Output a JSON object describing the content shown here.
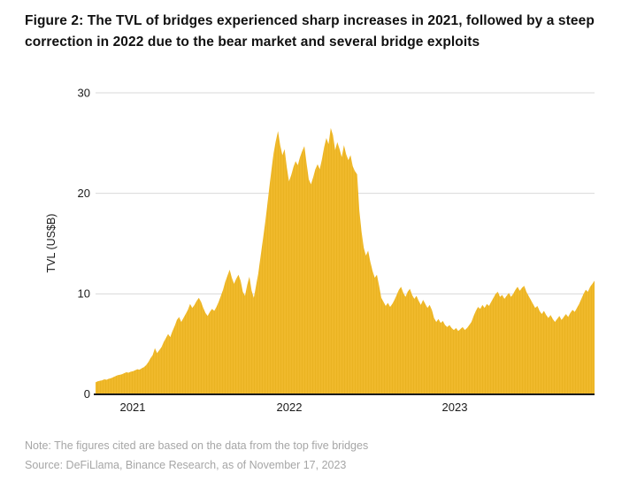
{
  "figure": {
    "title_line1": "Figure 2: The TVL of bridges experienced sharp increases in 2021, followed by a steep",
    "title_line2": "correction in 2022 due to the bear market and several bridge exploits",
    "note": "Note: The figures cited are based on the data from the top five bridges",
    "source": "Source: DeFiLlama, Binance Research, as of November 17, 2023"
  },
  "chart_data": {
    "type": "area",
    "title": "The TVL of bridges",
    "ylabel": "TVL (US$B)",
    "xlabel": "",
    "ylim": [
      0,
      30
    ],
    "y_ticks": [
      0,
      10,
      20,
      30
    ],
    "x_tick_labels": [
      "2021",
      "2022",
      "2023"
    ],
    "x_range": [
      "Oct 2020",
      "Nov 17, 2023"
    ],
    "grid": "horizontal",
    "legend": "none",
    "colors": {
      "area": "#F0B92B",
      "area_stripe": "#E2AB17",
      "grid": "#d9d9d9",
      "axis": "#1a1a1a",
      "tick_text": "#1a1a1a",
      "footnote_text": "#a6a6a6"
    },
    "series": [
      {
        "name": "Bridge TVL (US$B)",
        "interval": "approx. 5-day samples, Oct 2020 to Nov 17 2023",
        "values": [
          1.2,
          1.3,
          1.35,
          1.4,
          1.5,
          1.45,
          1.55,
          1.6,
          1.7,
          1.8,
          1.9,
          1.95,
          2.0,
          2.1,
          2.2,
          2.15,
          2.25,
          2.3,
          2.4,
          2.5,
          2.45,
          2.6,
          2.7,
          2.9,
          3.2,
          3.6,
          3.9,
          4.6,
          4.1,
          4.4,
          4.7,
          5.2,
          5.6,
          6.0,
          5.7,
          6.3,
          6.8,
          7.4,
          7.7,
          7.2,
          7.6,
          8.0,
          8.4,
          9.0,
          8.6,
          8.9,
          9.3,
          9.6,
          9.2,
          8.6,
          8.1,
          7.8,
          8.2,
          8.5,
          8.3,
          8.7,
          9.2,
          9.8,
          10.4,
          11.2,
          11.8,
          12.4,
          11.6,
          11.0,
          11.5,
          11.9,
          11.3,
          10.2,
          9.8,
          10.9,
          11.7,
          10.3,
          9.6,
          10.8,
          12.0,
          13.6,
          15.2,
          16.8,
          18.6,
          20.5,
          22.3,
          24.0,
          25.2,
          26.2,
          24.8,
          23.8,
          24.4,
          22.6,
          21.2,
          21.8,
          22.6,
          23.2,
          22.8,
          23.6,
          24.2,
          24.7,
          23.0,
          21.4,
          20.9,
          21.6,
          22.4,
          22.9,
          22.4,
          23.4,
          24.6,
          25.5,
          24.9,
          26.5,
          25.8,
          24.3,
          25.1,
          24.4,
          23.6,
          24.8,
          23.9,
          23.3,
          23.8,
          22.7,
          22.2,
          21.9,
          18.3,
          16.2,
          14.6,
          13.8,
          14.3,
          13.2,
          12.3,
          11.6,
          11.9,
          10.8,
          9.6,
          9.2,
          8.8,
          9.1,
          8.7,
          9.0,
          9.4,
          9.9,
          10.4,
          10.7,
          10.1,
          9.7,
          10.2,
          10.5,
          9.9,
          9.5,
          9.8,
          9.3,
          8.9,
          9.4,
          9.0,
          8.6,
          8.9,
          8.4,
          7.6,
          7.2,
          7.5,
          7.1,
          7.3,
          6.9,
          6.7,
          6.9,
          6.6,
          6.4,
          6.6,
          6.3,
          6.5,
          6.7,
          6.4,
          6.6,
          6.9,
          7.2,
          7.8,
          8.3,
          8.7,
          8.5,
          8.9,
          8.6,
          9.0,
          8.8,
          9.2,
          9.6,
          10.0,
          10.2,
          9.7,
          9.9,
          9.5,
          9.8,
          10.1,
          9.7,
          10.0,
          10.4,
          10.7,
          10.3,
          10.6,
          10.8,
          10.2,
          9.8,
          9.4,
          9.0,
          8.6,
          8.8,
          8.3,
          8.0,
          8.3,
          7.9,
          7.6,
          7.9,
          7.5,
          7.2,
          7.5,
          7.8,
          7.4,
          7.7,
          8.0,
          7.7,
          8.1,
          8.4,
          8.2,
          8.6,
          9.0,
          9.5,
          10.0,
          10.4,
          10.2,
          10.7,
          11.0,
          11.3
        ]
      }
    ]
  }
}
